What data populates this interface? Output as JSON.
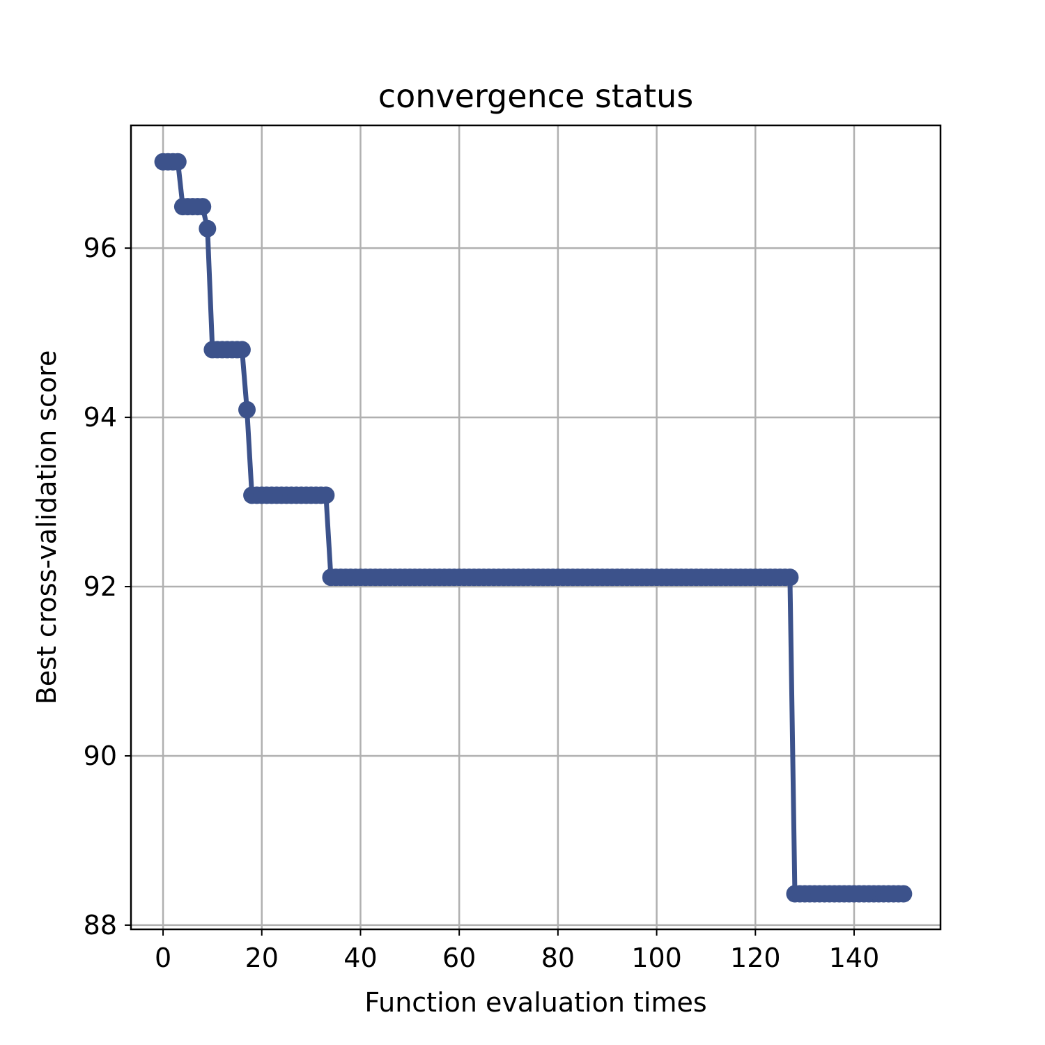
{
  "chart_data": {
    "type": "line",
    "title": "convergence status",
    "xlabel": "Function evaluation times",
    "ylabel": "Best cross-validation score",
    "xlim": [
      -6.5,
      157.5
    ],
    "ylim": [
      87.95,
      97.45
    ],
    "xticks": [
      0,
      20,
      40,
      60,
      80,
      100,
      120,
      140
    ],
    "yticks": [
      88,
      90,
      92,
      94,
      96
    ],
    "grid": true,
    "legend": "none",
    "color": "#3c528b",
    "series": [
      {
        "segments": [
          {
            "from": 0,
            "to": 3,
            "value": 97.02
          },
          {
            "from": 4,
            "to": 8,
            "value": 96.49
          },
          {
            "from": 9,
            "to": 9,
            "value": 96.23
          },
          {
            "from": 10,
            "to": 16,
            "value": 94.8
          },
          {
            "from": 17,
            "to": 17,
            "value": 94.09
          },
          {
            "from": 18,
            "to": 33,
            "value": 93.08
          },
          {
            "from": 34,
            "to": 127,
            "value": 92.11
          },
          {
            "from": 128,
            "to": 150,
            "value": 88.37
          }
        ]
      }
    ]
  }
}
